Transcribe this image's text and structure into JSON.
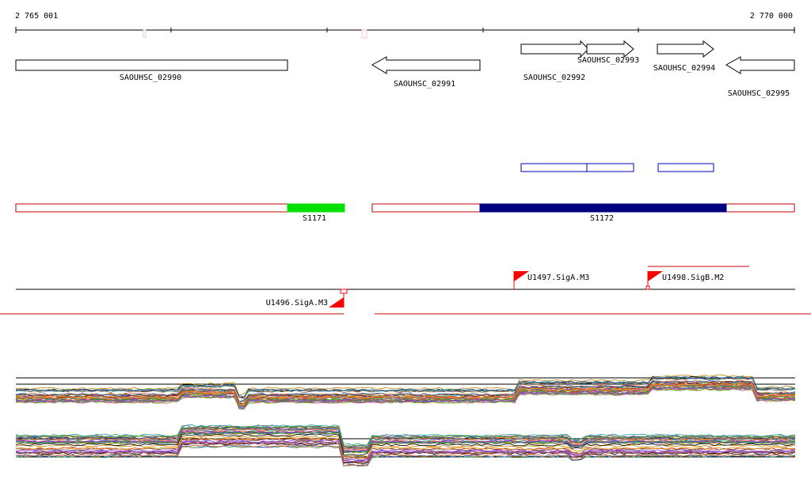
{
  "coordinates": {
    "start": "2 765 001",
    "end": "2 770 000"
  },
  "genes": [
    {
      "id": "SAOUHSC_02990",
      "strand": "none"
    },
    {
      "id": "SAOUHSC_02991",
      "strand": "minus"
    },
    {
      "id": "SAOUHSC_02992",
      "strand": "plus"
    },
    {
      "id": "SAOUHSC_02993",
      "strand": "plus"
    },
    {
      "id": "SAOUHSC_02994",
      "strand": "plus"
    },
    {
      "id": "SAOUHSC_02995",
      "strand": "minus"
    }
  ],
  "segments": [
    {
      "label": "S1171",
      "color": "#00e000"
    },
    {
      "label": "S1172",
      "color": "#000080"
    }
  ],
  "promoters": [
    {
      "label": "U1496.SigA.M3",
      "strand": "minus"
    },
    {
      "label": "U1497.SigA.M3",
      "strand": "plus"
    },
    {
      "label": "U1498.SigB.M2",
      "strand": "plus"
    }
  ],
  "colors": {
    "segment_outline": "#cc0000",
    "orf_box": "#0000bb",
    "promoter_flag": "#ff0000",
    "terminator_line": "#cc0000"
  }
}
